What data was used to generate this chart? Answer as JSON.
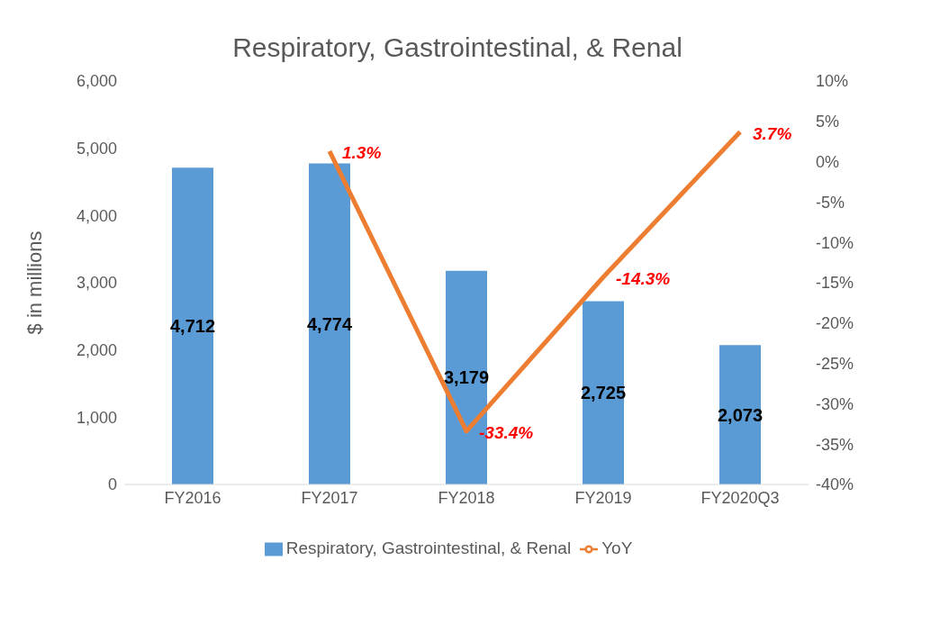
{
  "chart_data": {
    "type": "bar",
    "title": "Respiratory, Gastrointestinal, & Renal",
    "categories": [
      "FY2016",
      "FY2017",
      "FY2018",
      "FY2019",
      "FY2020Q3"
    ],
    "series": [
      {
        "name": "Respiratory, Gastrointestinal, & Renal",
        "color": "#5b9bd5",
        "values": [
          4712,
          4774,
          3179,
          2725,
          2073
        ],
        "value_labels": [
          "4,712",
          "4,774",
          "3,179",
          "2,725",
          "2,073"
        ]
      },
      {
        "name": "YoY",
        "type": "line",
        "axis": "y2",
        "color": "#ed7d31",
        "values": [
          null,
          1.3,
          -33.4,
          -14.3,
          3.7
        ],
        "value_labels": [
          null,
          "1.3%",
          "-33.4%",
          "-14.3%",
          "3.7%"
        ]
      }
    ],
    "ylabel": "$ in millions",
    "ylim": [
      0,
      6000
    ],
    "yticks": [
      0,
      {
        "value": 1000,
        "label": "1,000"
      },
      {
        "value": 2000,
        "label": "2,000"
      },
      {
        "value": 3000,
        "label": "3,000"
      },
      {
        "value": 4000,
        "label": "4,000"
      },
      {
        "value": 5000,
        "label": "5,000"
      },
      {
        "value": 6000,
        "label": "6,000"
      }
    ],
    "y2lim": [
      -40,
      10
    ],
    "y2ticks": [
      {
        "value": -40,
        "label": "-40%"
      },
      {
        "value": -35,
        "label": "-35%"
      },
      {
        "value": -30,
        "label": "-30%"
      },
      {
        "value": -25,
        "label": "-25%"
      },
      {
        "value": -20,
        "label": "-20%"
      },
      {
        "value": -15,
        "label": "-15%"
      },
      {
        "value": -10,
        "label": "-10%"
      },
      {
        "value": -5,
        "label": "-5%"
      },
      {
        "value": 0,
        "label": "0%"
      },
      {
        "value": 5,
        "label": "5%"
      },
      {
        "value": 10,
        "label": "10%"
      }
    ],
    "grid": false,
    "legend": "bottom"
  }
}
